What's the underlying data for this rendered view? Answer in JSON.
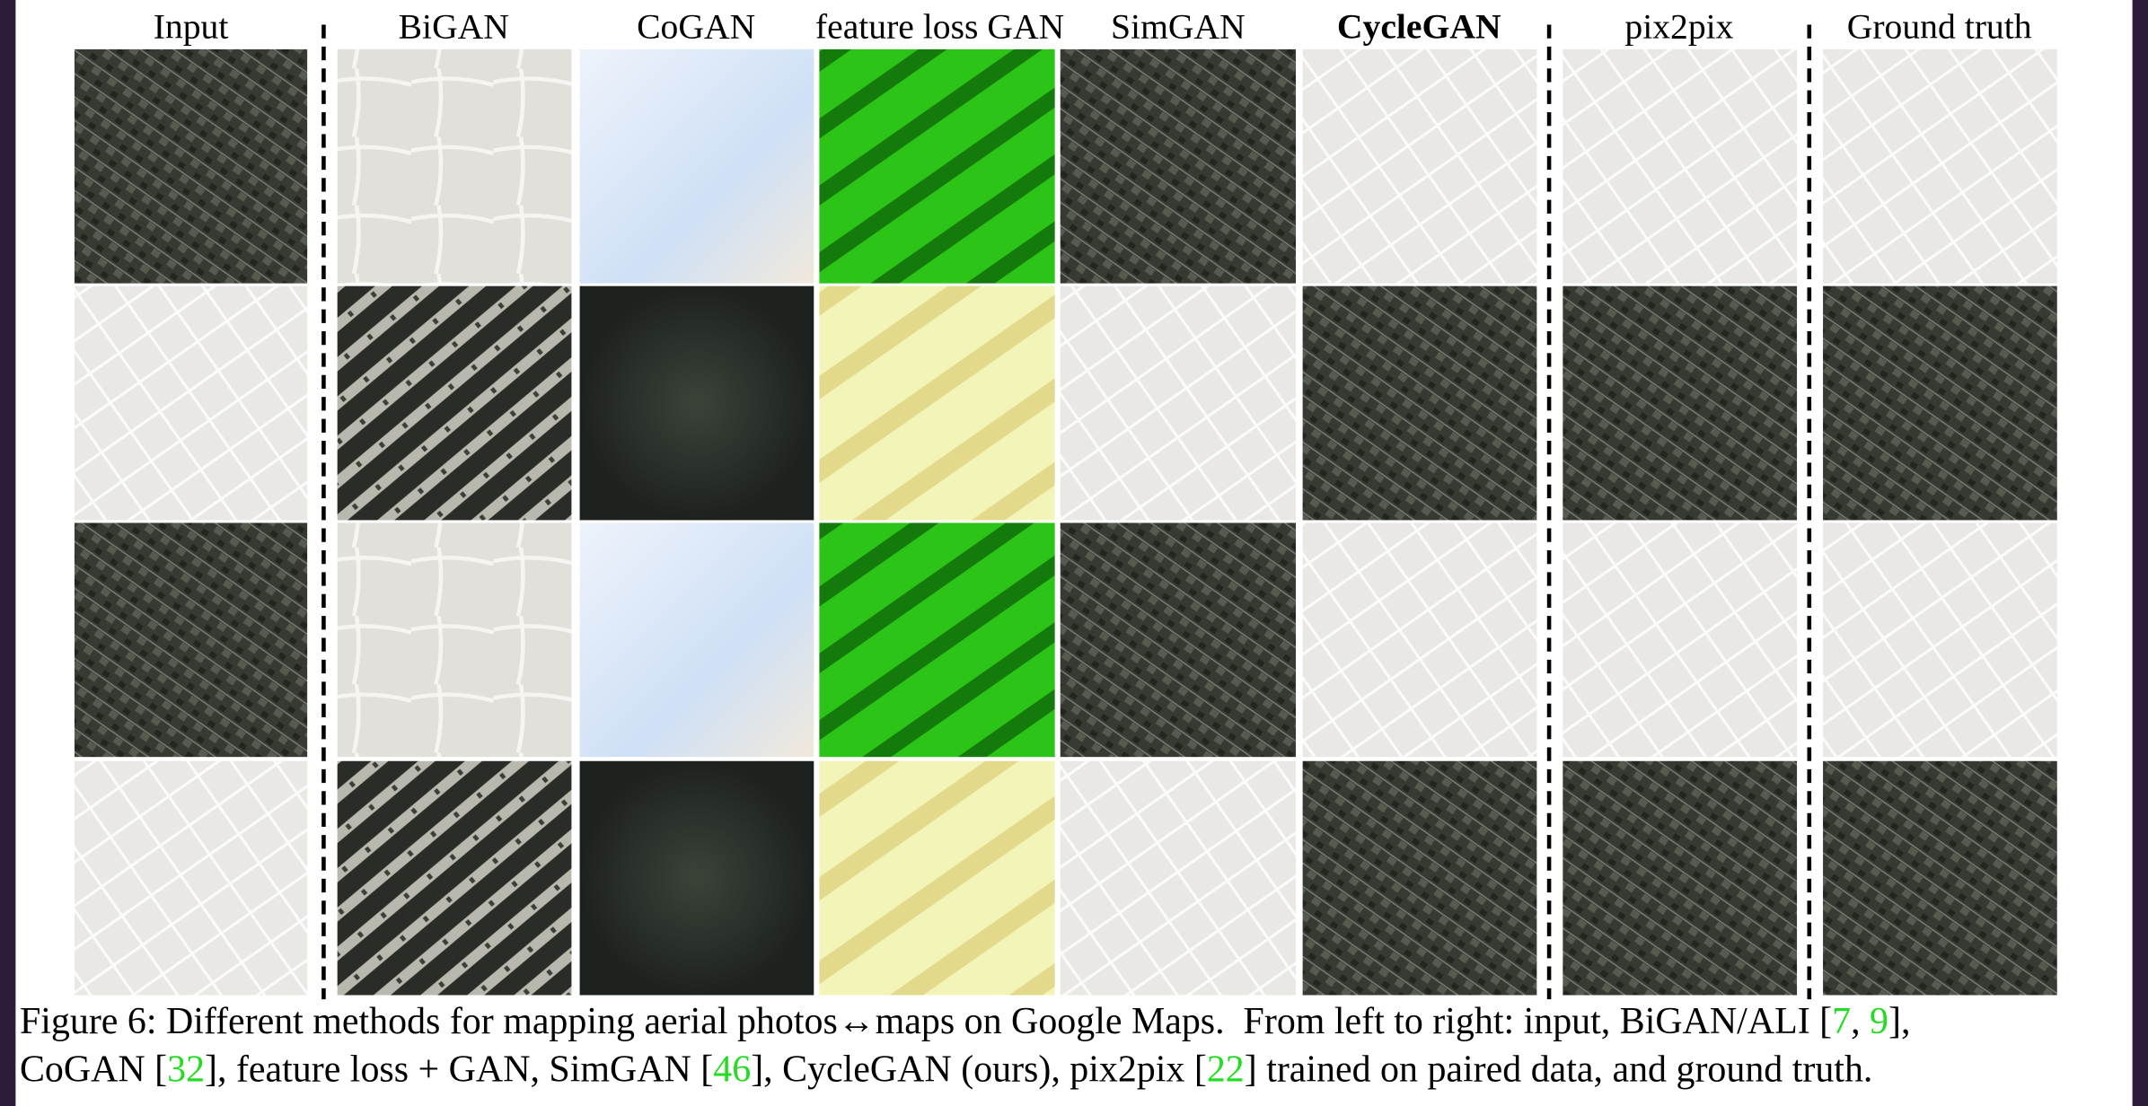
{
  "figure": {
    "headers": [
      "Input",
      "BiGAN",
      "CoGAN",
      "feature loss GAN",
      "SimGAN",
      "CycleGAN",
      "pix2pix",
      "Ground truth"
    ],
    "caption": {
      "lines": [
        [
          {
            "text": "Figure 6: Different methods for mapping aerial photos↔maps on Google Maps.  From left to right: input, BiGAN/ALI ["
          },
          {
            "text": "7",
            "color": "#22dd22"
          },
          {
            "text": ", "
          },
          {
            "text": "9",
            "color": "#22dd22"
          },
          {
            "text": "],"
          }
        ],
        [
          {
            "text": "CoGAN ["
          },
          {
            "text": "32",
            "color": "#22dd22"
          },
          {
            "text": "], feature loss + GAN, SimGAN ["
          },
          {
            "text": "46",
            "color": "#22dd22"
          },
          {
            "text": "], CycleGAN (ours), pix2pix ["
          },
          {
            "text": "22",
            "color": "#22dd22"
          },
          {
            "text": "] trained on paired data, and ground truth."
          }
        ]
      ]
    }
  }
}
